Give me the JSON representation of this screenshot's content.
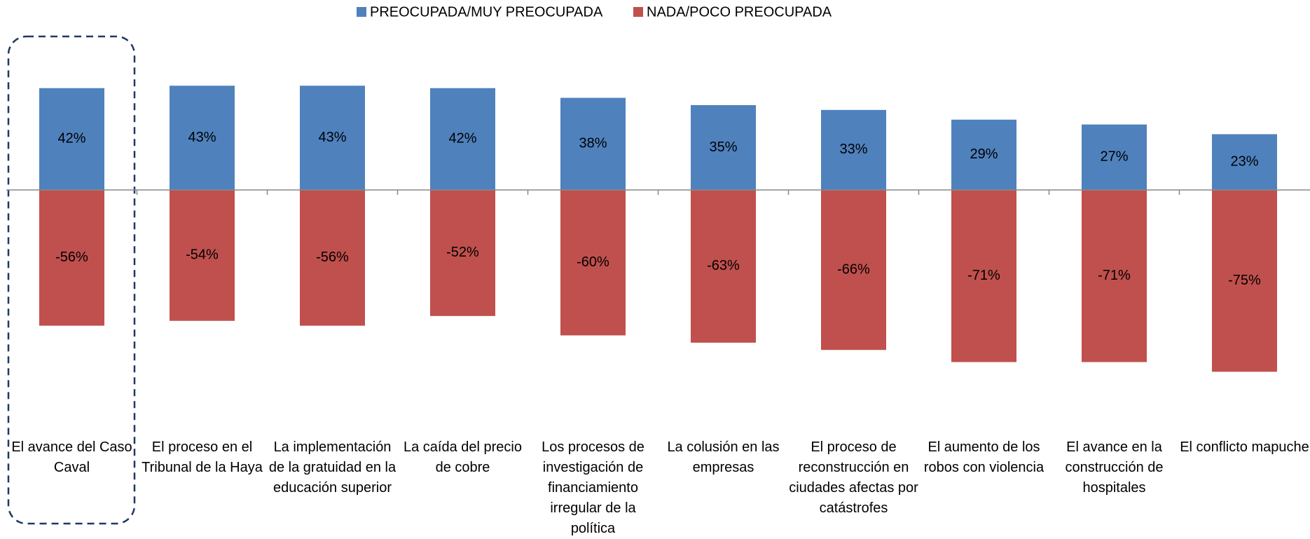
{
  "chart_data": {
    "type": "diverging-bar",
    "categories": [
      "El avance del Caso Caval",
      "El proceso en el Tribunal de la Haya",
      "La implementación de la gratuidad en la educación superior",
      "La caída del precio de cobre",
      "Los procesos de investigación de financiamiento irregular de la política",
      "La colusión en las empresas",
      "El proceso de reconstrucción en ciudades afectas por catástrofes",
      "El aumento de los robos con violencia",
      "El avance en la construcción de hospitales",
      "El conflicto mapuche"
    ],
    "series": [
      {
        "name": "PREOCUPADA/MUY PREOCUPADA",
        "color": "#4f81bd",
        "values": [
          42,
          43,
          43,
          42,
          38,
          35,
          33,
          29,
          27,
          23
        ],
        "value_labels": [
          "42%",
          "43%",
          "43%",
          "42%",
          "38%",
          "35%",
          "33%",
          "29%",
          "27%",
          "23%"
        ]
      },
      {
        "name": "NADA/POCO PREOCUPADA",
        "color": "#c0504d",
        "values": [
          -56,
          -54,
          -56,
          -52,
          -60,
          -63,
          -66,
          -71,
          -71,
          -75
        ],
        "value_labels": [
          "-56%",
          "-54%",
          "-56%",
          "-52%",
          "-60%",
          "-63%",
          "-66%",
          "-71%",
          "-71%",
          "-75%"
        ]
      }
    ],
    "legend": "top"
  }
}
